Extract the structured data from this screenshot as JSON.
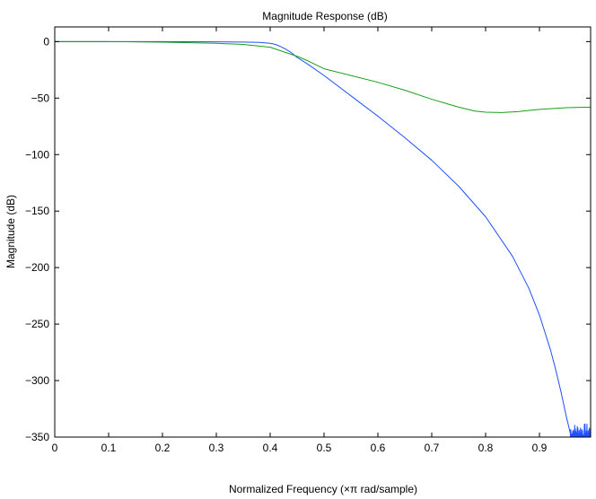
{
  "chart_data": {
    "type": "line",
    "title": "Magnitude Response (dB)",
    "xlabel": "Normalized Frequency (×π rad/sample)",
    "ylabel": "Magnitude (dB)",
    "xlim": [
      0,
      0.995
    ],
    "ylim": [
      -350,
      13
    ],
    "xticks": [
      0,
      0.1,
      0.2,
      0.3,
      0.4,
      0.5,
      0.6,
      0.7,
      0.8,
      0.9
    ],
    "xtick_labels": [
      "0",
      "0.1",
      "0.2",
      "0.3",
      "0.4",
      "0.5",
      "0.6",
      "0.7",
      "0.8",
      "0.9"
    ],
    "yticks": [
      0,
      -50,
      -100,
      -150,
      -200,
      -250,
      -300,
      -350
    ],
    "ytick_labels": [
      "0",
      "−50",
      "−100",
      "−150",
      "−200",
      "−250",
      "−300",
      "−350"
    ],
    "grid": false,
    "legend": "none",
    "series": [
      {
        "color": "#1f4fff",
        "x": [
          0,
          0.1,
          0.2,
          0.3,
          0.35,
          0.38,
          0.4,
          0.41,
          0.42,
          0.43,
          0.44,
          0.45,
          0.47,
          0.5,
          0.55,
          0.6,
          0.65,
          0.7,
          0.75,
          0.8,
          0.85,
          0.88,
          0.9,
          0.92,
          0.93,
          0.94,
          0.95,
          0.957,
          0.96
        ],
        "y": [
          0,
          0,
          0,
          -0.2,
          -0.4,
          -0.7,
          -1.5,
          -2.5,
          -4.5,
          -7,
          -10,
          -14,
          -20,
          -30,
          -48,
          -66,
          -85,
          -105,
          -128,
          -155,
          -190,
          -218,
          -242,
          -272,
          -290,
          -310,
          -332,
          -346,
          -350
        ],
        "noise_start": 0.957,
        "noise_end": 0.995,
        "noise_top": -338,
        "noise_bottom": -350
      },
      {
        "color": "#1a9e1a",
        "x": [
          0,
          0.1,
          0.2,
          0.3,
          0.35,
          0.4,
          0.45,
          0.47,
          0.5,
          0.55,
          0.6,
          0.65,
          0.7,
          0.75,
          0.78,
          0.8,
          0.83,
          0.86,
          0.9,
          0.95,
          0.995
        ],
        "y": [
          0,
          0,
          -0.5,
          -1.5,
          -2.5,
          -5,
          -13,
          -17,
          -24,
          -30,
          -36,
          -43,
          -51,
          -58,
          -61.5,
          -62.5,
          -62.8,
          -62,
          -60,
          -58.5,
          -58
        ]
      }
    ]
  }
}
